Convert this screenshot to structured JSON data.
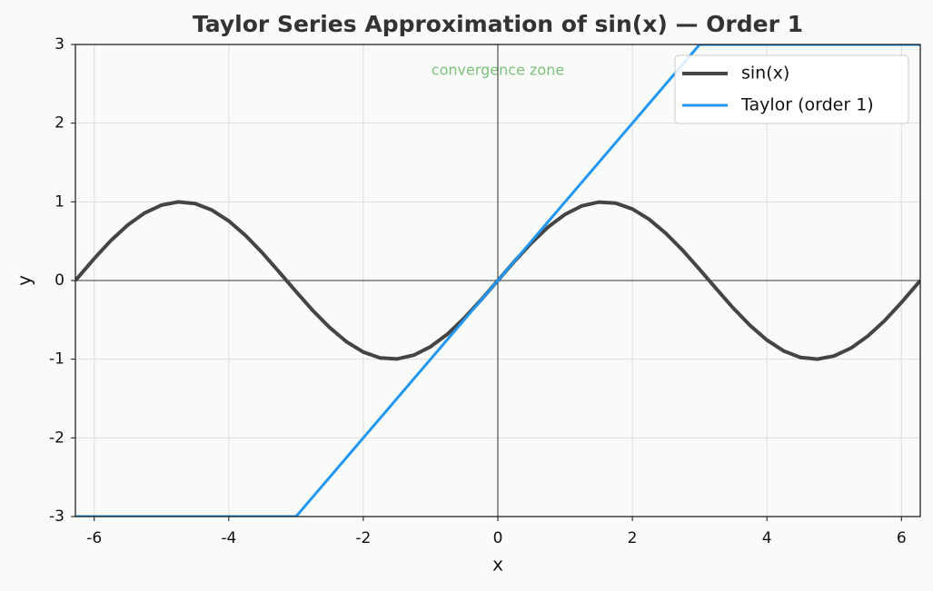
{
  "chart_data": {
    "type": "line",
    "title": "Taylor Series Approximation of sin(x)  —  Order 1",
    "x_label": "x",
    "y_label": "y",
    "annotation": "convergence zone",
    "x": [
      -6.28,
      -6,
      -5.75,
      -5.5,
      -5.25,
      -5,
      -4.75,
      -4.5,
      -4.25,
      -4,
      -3.75,
      -3.5,
      -3.25,
      -3,
      -2.75,
      -2.5,
      -2.25,
      -2,
      -1.75,
      -1.5,
      -1.25,
      -1,
      -0.75,
      -0.5,
      -0.25,
      0,
      0.25,
      0.5,
      0.75,
      1,
      1.25,
      1.5,
      1.75,
      2,
      2.25,
      2.5,
      2.75,
      3,
      3.25,
      3.5,
      3.75,
      4,
      4.25,
      4.5,
      4.75,
      5,
      5.25,
      5.5,
      5.75,
      6,
      6.28
    ],
    "series": [
      {
        "name": "sin(x)",
        "color": "#444444",
        "values": [
          0,
          0.279,
          0.51,
          0.706,
          0.859,
          0.959,
          0.999,
          0.978,
          0.895,
          0.757,
          0.572,
          0.351,
          0.108,
          -0.141,
          -0.382,
          -0.598,
          -0.778,
          -0.909,
          -0.984,
          -0.997,
          -0.949,
          -0.841,
          -0.682,
          -0.479,
          -0.247,
          0,
          0.247,
          0.479,
          0.682,
          0.841,
          0.949,
          0.997,
          0.984,
          0.909,
          0.778,
          0.598,
          0.382,
          0.141,
          -0.108,
          -0.351,
          -0.572,
          -0.757,
          -0.895,
          -0.978,
          -0.999,
          -0.959,
          -0.859,
          -0.706,
          -0.51,
          -0.279,
          0
        ]
      },
      {
        "name": "Taylor (order 1)",
        "color": "#2196f3",
        "values": [
          -3,
          -3,
          -3,
          -3,
          -3,
          -3,
          -3,
          -3,
          -3,
          -3,
          -3,
          -3,
          -3,
          -3,
          -2.75,
          -2.5,
          -2.25,
          -2,
          -1.75,
          -1.5,
          -1.25,
          -1,
          -0.75,
          -0.5,
          -0.25,
          0,
          0.25,
          0.5,
          0.75,
          1,
          1.25,
          1.5,
          1.75,
          2,
          2.25,
          2.5,
          2.75,
          3,
          3,
          3,
          3,
          3,
          3,
          3,
          3,
          3,
          3,
          3,
          3,
          3,
          3
        ]
      }
    ],
    "xlim": [
      -6.28,
      6.28
    ],
    "ylim": [
      -3,
      3
    ],
    "xticks": [
      -6,
      -4,
      -2,
      0,
      2,
      4,
      6
    ],
    "yticks": [
      -3,
      -2,
      -1,
      0,
      1,
      2,
      3
    ],
    "grid": true,
    "legend": "upper right"
  }
}
